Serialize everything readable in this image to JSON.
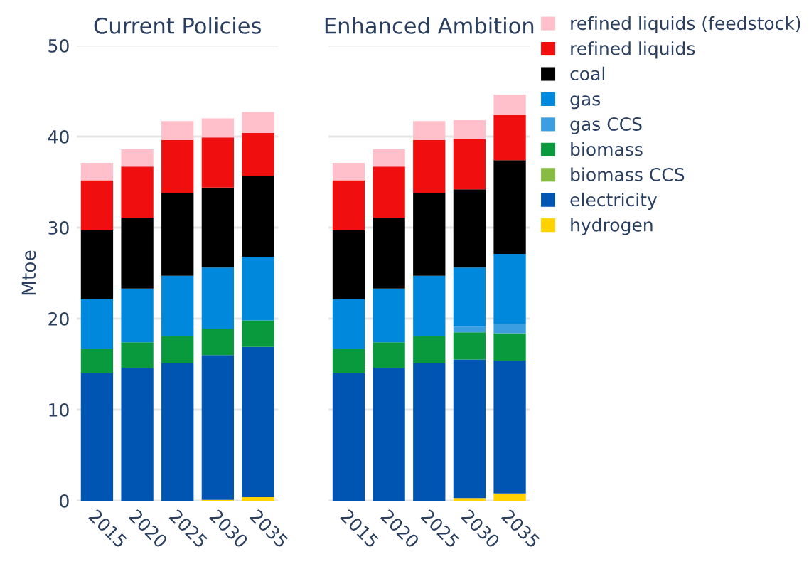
{
  "chart_data": [
    {
      "type": "bar",
      "stacked": true,
      "title": "Current Policies",
      "ylabel": "Mtoe",
      "categories": [
        "2015",
        "2020",
        "2025",
        "2030",
        "2035"
      ],
      "ylim": [
        0,
        50
      ],
      "yticks": [
        0,
        10,
        20,
        30,
        40,
        50
      ],
      "grid": "y",
      "legend": false,
      "series": [
        {
          "color": "#ffd200",
          "values": [
            0,
            0,
            0,
            0.1,
            0.4
          ]
        },
        {
          "color": "#0055b3",
          "values": [
            14.0,
            14.6,
            15.1,
            15.9,
            16.5
          ]
        },
        {
          "color": "#88bb44",
          "values": [
            0,
            0,
            0,
            0,
            0
          ]
        },
        {
          "color": "#0a9a3e",
          "values": [
            2.7,
            2.8,
            3.0,
            2.9,
            2.9
          ]
        },
        {
          "color": "#3a9ee0",
          "values": [
            0,
            0,
            0,
            0,
            0
          ]
        },
        {
          "color": "#0088dd",
          "values": [
            5.4,
            5.9,
            6.6,
            6.7,
            7.0
          ]
        },
        {
          "color": "#000000",
          "values": [
            7.6,
            7.8,
            9.1,
            8.8,
            8.9
          ]
        },
        {
          "color": "#f00e0e",
          "values": [
            5.5,
            5.6,
            5.8,
            5.5,
            4.7
          ]
        },
        {
          "color": "#ffc0cb",
          "values": [
            1.9,
            1.9,
            2.1,
            2.1,
            2.3
          ]
        }
      ]
    },
    {
      "type": "bar",
      "stacked": true,
      "title": "Enhanced Ambition",
      "categories": [
        "2015",
        "2020",
        "2025",
        "2030",
        "2035"
      ],
      "ylim": [
        0,
        50
      ],
      "yticks": [
        0,
        10,
        20,
        30,
        40,
        50
      ],
      "grid": "y",
      "legend": "right",
      "tick_labels": "x",
      "series": [
        {
          "name": "hydrogen",
          "color": "#ffd200",
          "values": [
            0,
            0,
            0,
            0.3,
            0.8
          ]
        },
        {
          "name": "electricity",
          "color": "#0055b3",
          "values": [
            14.0,
            14.6,
            15.1,
            15.2,
            14.6
          ]
        },
        {
          "name": "biomass CCS",
          "color": "#88bb44",
          "values": [
            0,
            0,
            0,
            0,
            0
          ]
        },
        {
          "name": "biomass",
          "color": "#0a9a3e",
          "values": [
            2.7,
            2.8,
            3.0,
            3.0,
            3.0
          ]
        },
        {
          "name": "gas CCS",
          "color": "#3a9ee0",
          "values": [
            0,
            0,
            0,
            0.6,
            1.0
          ]
        },
        {
          "name": "gas",
          "color": "#0088dd",
          "values": [
            5.4,
            5.9,
            6.6,
            6.5,
            7.7
          ]
        },
        {
          "name": "coal",
          "color": "#000000",
          "values": [
            7.6,
            7.8,
            9.1,
            8.6,
            10.3
          ]
        },
        {
          "name": "refined liquids",
          "color": "#f00e0e",
          "values": [
            5.5,
            5.6,
            5.8,
            5.5,
            5.0
          ]
        },
        {
          "name": "refined liquids (feedstock)",
          "color": "#ffc0cb",
          "values": [
            1.9,
            1.9,
            2.1,
            2.1,
            2.2
          ]
        }
      ]
    }
  ]
}
